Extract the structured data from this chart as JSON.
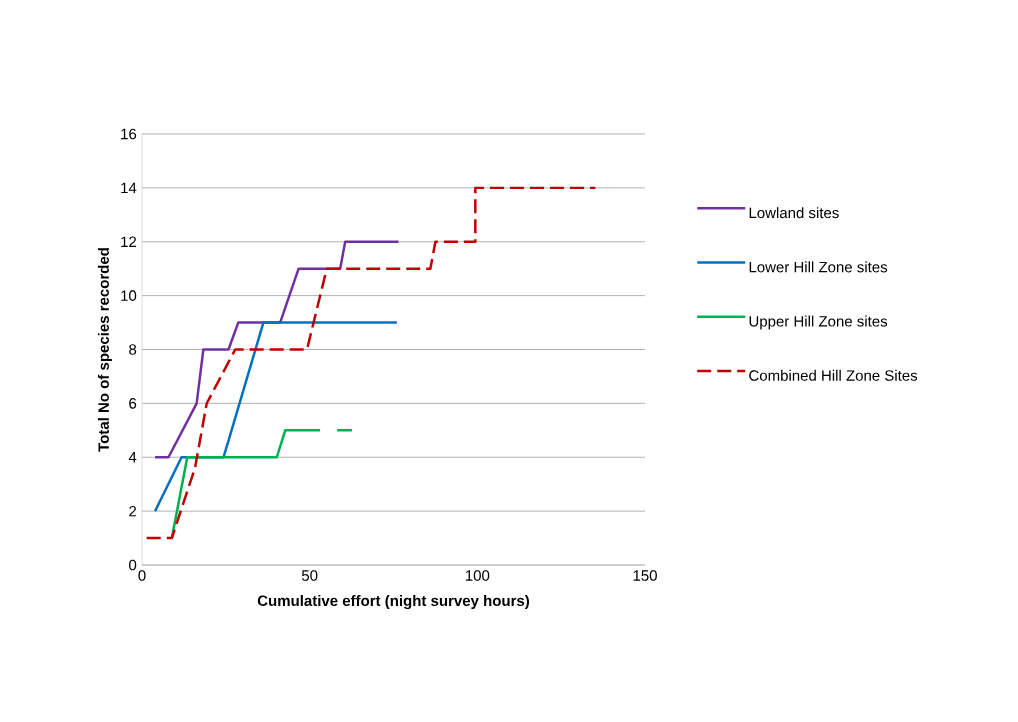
{
  "chart_data": {
    "type": "line",
    "xlabel": "Cumulative effort (night survey hours)",
    "ylabel": "Total No of species recorded",
    "xlim": [
      0,
      150
    ],
    "ylim": [
      0,
      16
    ],
    "xticks": [
      0,
      50,
      100,
      150
    ],
    "yticks": [
      0,
      2,
      4,
      6,
      8,
      10,
      12,
      14,
      16
    ],
    "grid": "y",
    "legend": "right",
    "marker": "none",
    "series": [
      {
        "name": "Lowland sites",
        "color": "#7030a0",
        "line_style": "solid",
        "x": [
          3.9,
          7.9,
          16.3,
          18.3,
          25.8,
          28.7,
          41.2,
          46.7,
          59.1,
          60.6,
          76.5
        ],
        "values": [
          4,
          4,
          6,
          8,
          8,
          9,
          9,
          11,
          11,
          12,
          12
        ]
      },
      {
        "name": "Lower Hill Zone sites",
        "color": "#0070c0",
        "line_style": "solid",
        "x": [
          3.9,
          11.8,
          24.3,
          26,
          36.2,
          76
        ],
        "values": [
          2,
          4,
          4,
          4.7,
          9,
          9
        ]
      },
      {
        "name": "Upper Hill Zone sites",
        "color": "#00b050",
        "line_style": "solid",
        "x": [
          8.9,
          13.5,
          40.2,
          42.7,
          53.1,
          55.5,
          58.2,
          62.6
        ],
        "values": [
          1,
          4,
          4,
          5,
          5,
          null,
          5,
          5
        ]
      },
      {
        "name": "Combined Hill Zone Sites",
        "color": "#c00000",
        "line_style": "dashed",
        "x": [
          1.4,
          8.9,
          15.8,
          19.3,
          27.8,
          49.2,
          55.1,
          86,
          87.5,
          99.4,
          99.4,
          135.2
        ],
        "values": [
          1,
          1,
          3.6,
          6,
          8,
          8,
          11,
          11,
          12,
          12,
          14,
          14
        ]
      }
    ]
  }
}
